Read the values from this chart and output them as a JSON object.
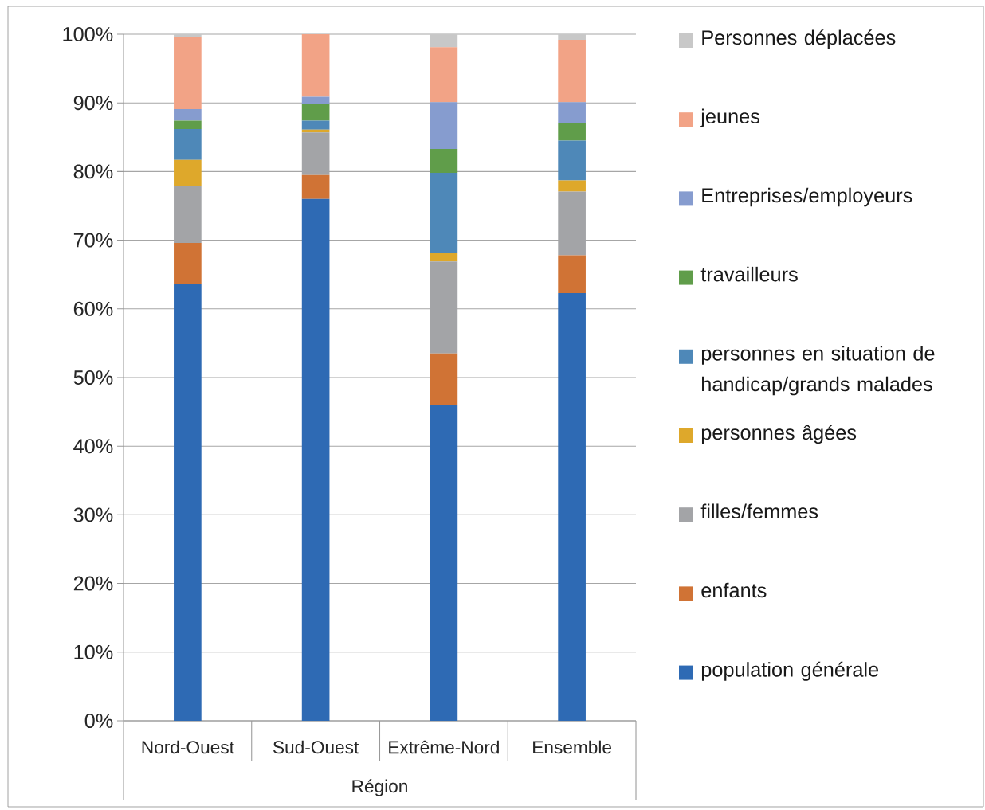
{
  "chart_data": {
    "type": "bar",
    "stacked": true,
    "xlabel": "Région",
    "categories": [
      "Nord-Ouest",
      "Sud-Ouest",
      "Extrême-Nord",
      "Ensemble"
    ],
    "ylim": [
      0,
      100
    ],
    "yticks": [
      {
        "value": 0,
        "label": "0%"
      },
      {
        "value": 10,
        "label": "10%"
      },
      {
        "value": 20,
        "label": "20%"
      },
      {
        "value": 30,
        "label": "30%"
      },
      {
        "value": 40,
        "label": "40%"
      },
      {
        "value": 50,
        "label": "50%"
      },
      {
        "value": 60,
        "label": "60%"
      },
      {
        "value": 70,
        "label": "70%"
      },
      {
        "value": 80,
        "label": "80%"
      },
      {
        "value": 90,
        "label": "90%"
      },
      {
        "value": 100,
        "label": "100%"
      }
    ],
    "grid": "y",
    "legend": "right",
    "series": [
      {
        "name": "population générale",
        "color": "#2e6ab4",
        "values": [
          63.7,
          76.0,
          46.0,
          62.3
        ]
      },
      {
        "name": "enfants",
        "color": "#d07335",
        "values": [
          5.9,
          3.5,
          7.5,
          5.5
        ]
      },
      {
        "name": "filles/femmes",
        "color": "#a3a4a7",
        "values": [
          8.3,
          6.2,
          13.4,
          9.3
        ]
      },
      {
        "name": "personnes âgées",
        "color": "#dea82b",
        "values": [
          3.8,
          0.4,
          1.2,
          1.6
        ]
      },
      {
        "name": "personnes en situation de handicap/grands malades",
        "color": "#4e88b8",
        "values": [
          4.5,
          1.3,
          11.7,
          5.8
        ]
      },
      {
        "name": "travailleurs",
        "color": "#609d4a",
        "values": [
          1.2,
          2.4,
          3.5,
          2.5
        ]
      },
      {
        "name": "Entreprises/employeurs",
        "color": "#869ccf",
        "values": [
          1.7,
          1.1,
          6.8,
          3.1
        ]
      },
      {
        "name": "jeunes",
        "color": "#f2a386",
        "values": [
          10.5,
          9.1,
          8.0,
          9.1
        ]
      },
      {
        "name": "Personnes déplacées",
        "color": "#c8c8c8",
        "values": [
          0.4,
          0.0,
          1.9,
          0.8
        ]
      }
    ]
  }
}
